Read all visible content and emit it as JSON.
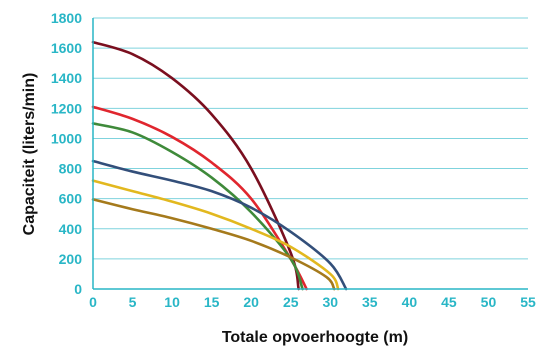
{
  "chart_data": {
    "type": "line",
    "title": "",
    "xlabel": "Totale opvoerhoogte (m)",
    "ylabel": "Capaciteit (liters/min)",
    "xlim": [
      0,
      55
    ],
    "ylim": [
      0,
      1800
    ],
    "x_ticks": [
      "0",
      "5",
      "10",
      "15",
      "20",
      "25",
      "30",
      "35",
      "40",
      "45",
      "50",
      "55"
    ],
    "y_ticks": [
      "0",
      "200",
      "400",
      "600",
      "800",
      "1000",
      "1200",
      "1400",
      "1600",
      "1800"
    ],
    "grid": "horizontal",
    "legend": "none",
    "colors": {
      "axis": "#29b6c6",
      "grid": "#7fd3dd",
      "title": "#111111"
    },
    "series": [
      {
        "color": "#7a0f1f",
        "x": [
          0,
          5,
          10,
          15,
          20,
          25,
          26
        ],
        "y": [
          1640,
          1560,
          1400,
          1160,
          800,
          240,
          0
        ]
      },
      {
        "color": "#e0262e",
        "x": [
          0,
          5,
          10,
          15,
          20,
          25,
          27
        ],
        "y": [
          1210,
          1130,
          1010,
          840,
          600,
          200,
          0
        ]
      },
      {
        "color": "#3f8a3a",
        "x": [
          0,
          5,
          10,
          15,
          20,
          25,
          26.5
        ],
        "y": [
          1100,
          1040,
          910,
          740,
          510,
          200,
          0
        ]
      },
      {
        "color": "#334f7a",
        "x": [
          0,
          5,
          10,
          15,
          20,
          25,
          30,
          32
        ],
        "y": [
          850,
          780,
          720,
          650,
          540,
          380,
          170,
          0
        ]
      },
      {
        "color": "#e2b81f",
        "x": [
          0,
          5,
          10,
          15,
          20,
          25,
          30,
          31
        ],
        "y": [
          720,
          650,
          580,
          500,
          400,
          280,
          100,
          0
        ]
      },
      {
        "color": "#a57a1c",
        "x": [
          0,
          5,
          10,
          15,
          20,
          25,
          29.5,
          30.5
        ],
        "y": [
          595,
          530,
          470,
          400,
          320,
          210,
          80,
          0
        ]
      }
    ]
  }
}
